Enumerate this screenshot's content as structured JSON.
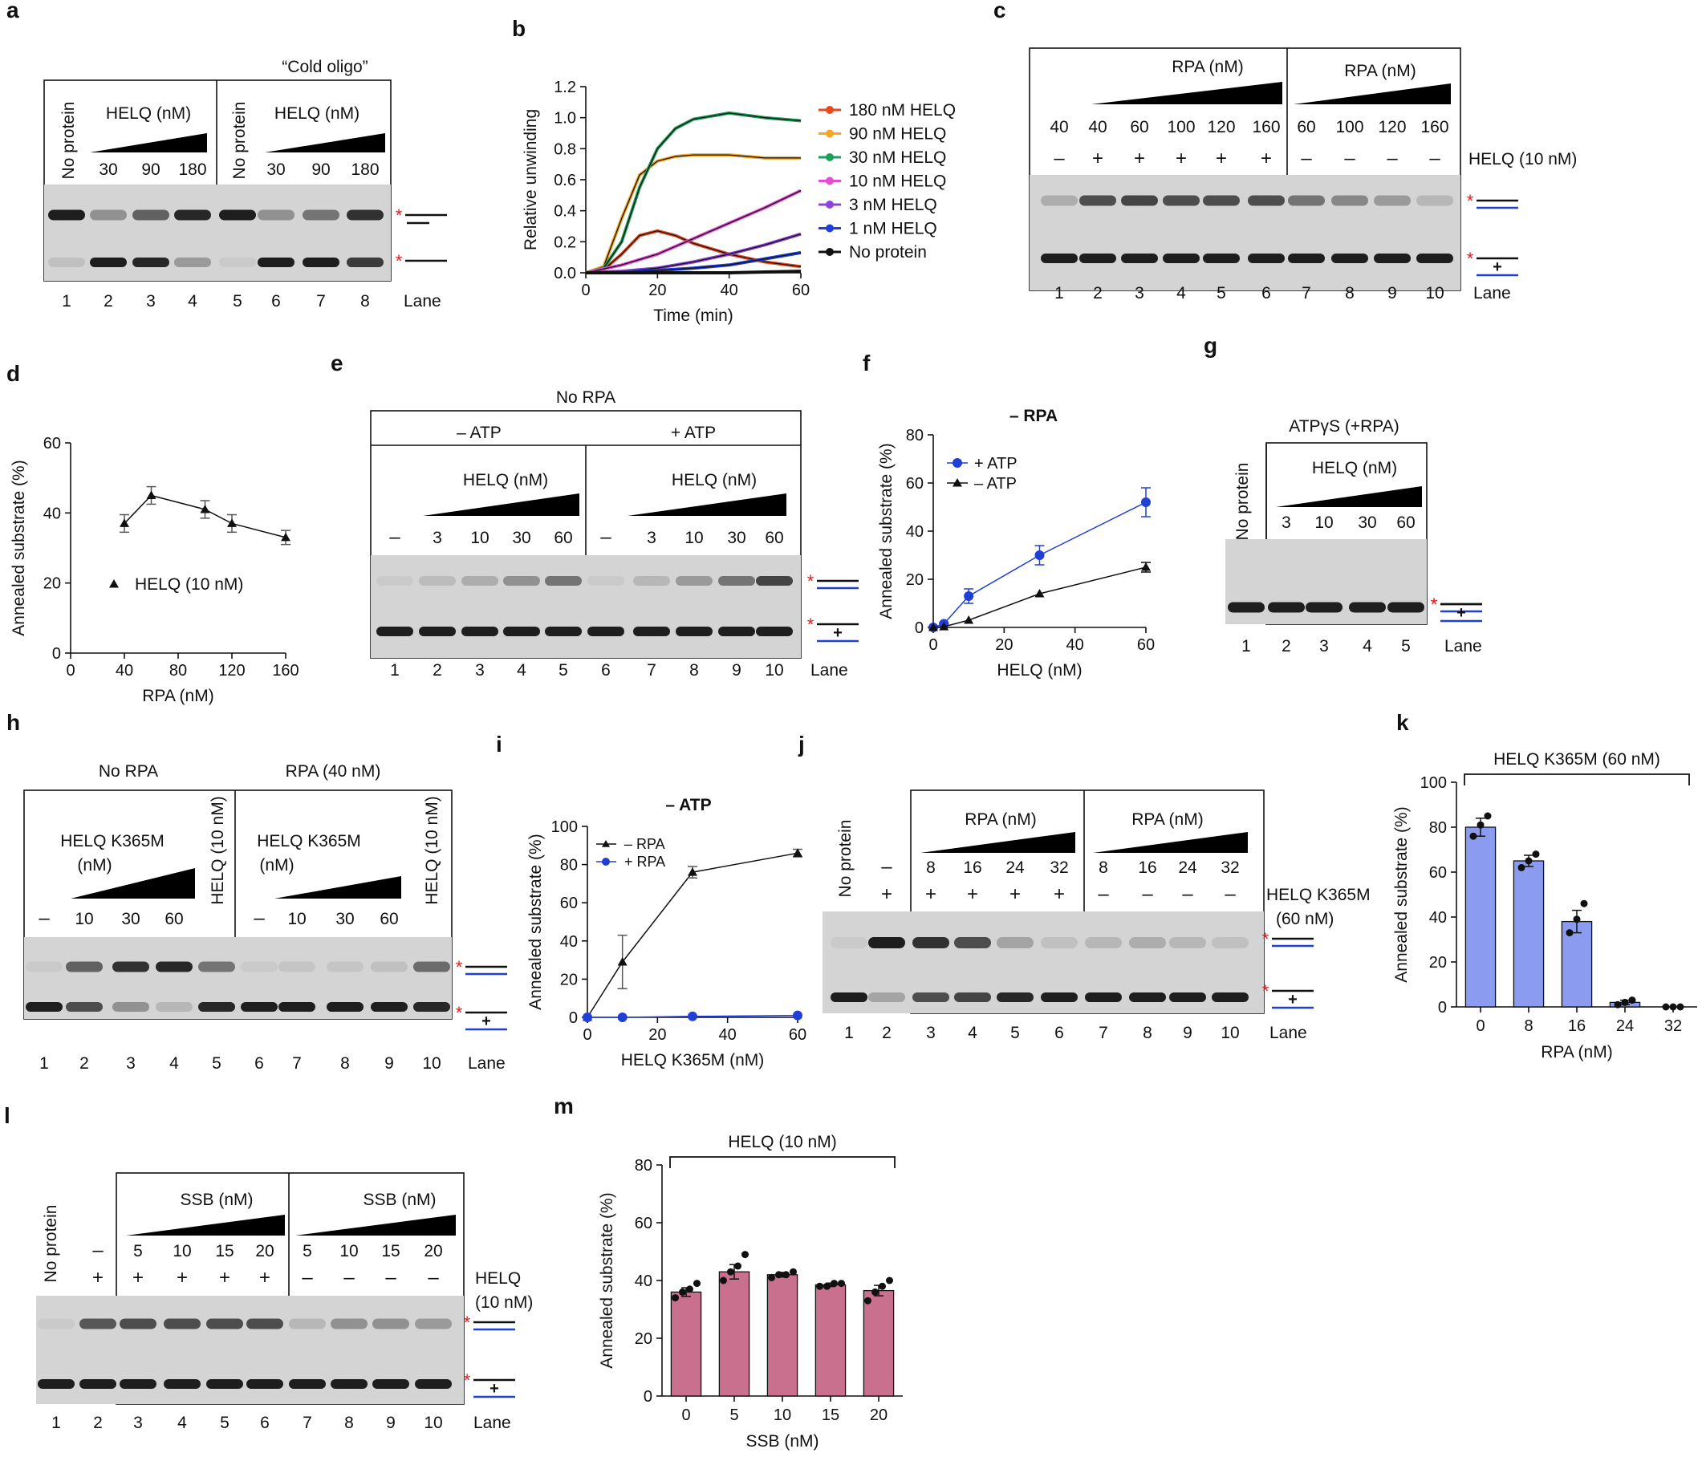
{
  "panels": {
    "a": {
      "letter": "a",
      "title": "“Cold oligo”",
      "no_protein": "No protein",
      "helq_label": "HELQ (nM)",
      "conc": [
        "30",
        "90",
        "180"
      ],
      "lanes": [
        "1",
        "2",
        "3",
        "4",
        "5",
        "6",
        "7",
        "8"
      ],
      "lane_word": "Lane"
    },
    "b": {
      "letter": "b"
    },
    "c": {
      "letter": "c",
      "rpa_label": "RPA (nM)",
      "conc_left": [
        "40",
        "40",
        "60",
        "100",
        "120",
        "160"
      ],
      "conc_right": [
        "60",
        "100",
        "120",
        "160"
      ],
      "signs_left": [
        "–",
        "+",
        "+",
        "+",
        "+",
        "+"
      ],
      "signs_right": [
        "–",
        "–",
        "–",
        "–"
      ],
      "helq_label": "HELQ (10 nM)",
      "lanes": [
        "1",
        "2",
        "3",
        "4",
        "5",
        "6",
        "7",
        "8",
        "9",
        "10"
      ],
      "lane_word": "Lane"
    },
    "d": {
      "letter": "d"
    },
    "e": {
      "letter": "e",
      "title": "No RPA",
      "minus_atp": "– ATP",
      "plus_atp": "+ ATP",
      "helq_label": "HELQ (nM)",
      "dash": "–",
      "conc": [
        "3",
        "10",
        "30",
        "60"
      ],
      "lanes": [
        "1",
        "2",
        "3",
        "4",
        "5",
        "6",
        "7",
        "8",
        "9",
        "10"
      ],
      "lane_word": "Lane"
    },
    "f": {
      "letter": "f"
    },
    "g": {
      "letter": "g",
      "title": "ATPγS (+RPA)",
      "no_protein": "No protein",
      "helq_label": "HELQ (nM)",
      "conc": [
        "3",
        "10",
        "30",
        "60"
      ],
      "lanes": [
        "1",
        "2",
        "3",
        "4",
        "5"
      ],
      "lane_word": "Lane"
    },
    "h": {
      "letter": "h",
      "no_rpa": "No RPA",
      "rpa40": "RPA (40 nM)",
      "k365m": "HELQ K365M",
      "nm": "(nM)",
      "helq10": "HELQ (10 nM)",
      "dash": "–",
      "conc": [
        "10",
        "30",
        "60"
      ],
      "lanes": [
        "1",
        "2",
        "3",
        "4",
        "5",
        "6",
        "7",
        "8",
        "9",
        "10"
      ],
      "lane_word": "Lane"
    },
    "i": {
      "letter": "i"
    },
    "j": {
      "letter": "j",
      "no_protein": "No protein",
      "rpa_label": "RPA (nM)",
      "conc": [
        "8",
        "16",
        "24",
        "32"
      ],
      "signs_top": [
        "–"
      ],
      "signs_left": [
        "+",
        "+",
        "+",
        "+",
        "+"
      ],
      "signs_right": [
        "–",
        "–",
        "–",
        "–"
      ],
      "helq_label_1": "HELQ K365M",
      "helq_label_2": "(60 nM)",
      "lanes": [
        "1",
        "2",
        "3",
        "4",
        "5",
        "6",
        "7",
        "8",
        "9",
        "10"
      ],
      "lane_word": "Lane"
    },
    "k": {
      "letter": "k"
    },
    "l": {
      "letter": "l",
      "no_protein": "No protein",
      "ssb_label": "SSB (nM)",
      "conc": [
        "5",
        "10",
        "15",
        "20"
      ],
      "signs_top": [
        "–"
      ],
      "signs_left": [
        "+",
        "+",
        "+",
        "+",
        "+"
      ],
      "signs_right": [
        "–",
        "–",
        "–",
        "–"
      ],
      "helq_label_1": "HELQ",
      "helq_label_2": "(10 nM)",
      "lanes": [
        "1",
        "2",
        "3",
        "4",
        "5",
        "6",
        "7",
        "8",
        "9",
        "10"
      ],
      "lane_word": "Lane"
    },
    "m": {
      "letter": "m"
    }
  },
  "colors": {
    "red": "#e31a1c",
    "blue": "#1f3fd6",
    "bar_k": "#8b9cf0",
    "bar_m": "#c9708f",
    "gel_bg": "#d4d4d4",
    "band": "#141414"
  },
  "chart_data": [
    {
      "panel": "b",
      "type": "line",
      "title": "",
      "xlabel": "Time (min)",
      "ylabel": "Relative unwinding",
      "xlim": [
        0,
        60
      ],
      "ylim": [
        0,
        1.2
      ],
      "xticks": [
        0,
        20,
        40,
        60
      ],
      "yticks": [
        0.0,
        0.2,
        0.4,
        0.6,
        0.8,
        1.0,
        1.2
      ],
      "ytick_labels": [
        "0.0",
        "0.2",
        "0.4",
        "0.6",
        "0.8",
        "1.0",
        "1.2"
      ],
      "series": [
        {
          "name": "180 nM HELQ",
          "color": "#e8491d",
          "x": [
            0,
            5,
            10,
            15,
            20,
            25,
            30,
            40,
            50,
            60
          ],
          "y": [
            0,
            0.02,
            0.12,
            0.24,
            0.27,
            0.24,
            0.19,
            0.12,
            0.07,
            0.04
          ]
        },
        {
          "name": "90 nM HELQ",
          "color": "#f5a623",
          "x": [
            0,
            5,
            10,
            15,
            20,
            25,
            30,
            40,
            50,
            60
          ],
          "y": [
            0,
            0.04,
            0.35,
            0.63,
            0.72,
            0.75,
            0.76,
            0.76,
            0.74,
            0.74
          ]
        },
        {
          "name": "30 nM HELQ",
          "color": "#1f9e5a",
          "x": [
            0,
            5,
            10,
            15,
            20,
            25,
            30,
            40,
            50,
            60
          ],
          "y": [
            0,
            0.03,
            0.2,
            0.55,
            0.8,
            0.93,
            0.99,
            1.03,
            1.0,
            0.98
          ]
        },
        {
          "name": "10 nM HELQ",
          "color": "#e64bd6",
          "x": [
            0,
            10,
            20,
            30,
            40,
            50,
            60
          ],
          "y": [
            0,
            0.05,
            0.12,
            0.22,
            0.32,
            0.42,
            0.53
          ]
        },
        {
          "name": "3 nM HELQ",
          "color": "#8e44d8",
          "x": [
            0,
            10,
            20,
            30,
            40,
            50,
            60
          ],
          "y": [
            0,
            0.01,
            0.03,
            0.07,
            0.12,
            0.18,
            0.25
          ]
        },
        {
          "name": "1 nM HELQ",
          "color": "#1f3fd6",
          "x": [
            0,
            10,
            20,
            30,
            40,
            50,
            60
          ],
          "y": [
            0,
            0.005,
            0.015,
            0.03,
            0.05,
            0.09,
            0.13
          ]
        },
        {
          "name": "No protein",
          "color": "#111111",
          "x": [
            0,
            10,
            20,
            30,
            40,
            50,
            60
          ],
          "y": [
            0,
            0.0,
            0.0,
            0.0,
            0.0,
            0.005,
            0.01
          ]
        }
      ]
    },
    {
      "panel": "d",
      "type": "line",
      "xlabel": "RPA (nM)",
      "ylabel": "Annealed substrate (%)",
      "xlim": [
        0,
        160
      ],
      "ylim": [
        0,
        60
      ],
      "xticks": [
        0,
        40,
        80,
        120,
        160
      ],
      "yticks": [
        0,
        20,
        40,
        60
      ],
      "legend": "HELQ (10 nM)",
      "series": [
        {
          "name": "HELQ (10 nM)",
          "color": "#111111",
          "marker": "triangle",
          "x": [
            40,
            60,
            100,
            120,
            160
          ],
          "y": [
            37,
            45,
            41,
            37,
            33
          ],
          "err": [
            2.5,
            2.5,
            2.5,
            2.5,
            2
          ]
        }
      ]
    },
    {
      "panel": "f",
      "type": "line",
      "title": "– RPA",
      "xlabel": "HELQ (nM)",
      "ylabel": "Annealed substrate (%)",
      "xlim": [
        0,
        60
      ],
      "ylim": [
        0,
        80
      ],
      "xticks": [
        0,
        20,
        40,
        60
      ],
      "yticks": [
        0,
        20,
        40,
        60,
        80
      ],
      "series": [
        {
          "name": "+ ATP",
          "color": "#1f3fd6",
          "marker": "circle",
          "x": [
            0,
            3,
            10,
            30,
            60
          ],
          "y": [
            0,
            1.5,
            13,
            30,
            52
          ],
          "err": [
            0,
            0.5,
            3,
            4,
            6
          ]
        },
        {
          "name": "– ATP",
          "color": "#111111",
          "marker": "triangle",
          "x": [
            0,
            3,
            10,
            30,
            60
          ],
          "y": [
            0,
            0.3,
            3,
            14,
            25
          ],
          "err": [
            0,
            0,
            0,
            0,
            2
          ]
        }
      ]
    },
    {
      "panel": "i",
      "type": "line",
      "title": "– ATP",
      "xlabel": "HELQ K365M (nM)",
      "ylabel": "Annealed substrate (%)",
      "xlim": [
        0,
        60
      ],
      "ylim": [
        0,
        100
      ],
      "xticks": [
        0,
        20,
        40,
        60
      ],
      "yticks": [
        0,
        20,
        40,
        60,
        80,
        100
      ],
      "series": [
        {
          "name": "– RPA",
          "color": "#111111",
          "marker": "triangle",
          "x": [
            0,
            10,
            30,
            60
          ],
          "y": [
            0,
            29,
            76,
            86
          ],
          "err": [
            0,
            14,
            3,
            2
          ]
        },
        {
          "name": "+ RPA",
          "color": "#1f3fd6",
          "marker": "circle",
          "x": [
            0,
            10,
            30,
            60
          ],
          "y": [
            0,
            0,
            0.5,
            1
          ],
          "err": [
            0,
            0,
            0,
            0
          ]
        }
      ]
    },
    {
      "panel": "k",
      "type": "bar",
      "title": "HELQ K365M (60 nM)",
      "xlabel": "RPA (nM)",
      "ylabel": "Annealed substrate (%)",
      "categories": [
        "0",
        "8",
        "16",
        "24",
        "32"
      ],
      "values": [
        80,
        65,
        38,
        2,
        0
      ],
      "err": [
        4,
        2.5,
        5,
        1,
        0
      ],
      "ylim": [
        0,
        100
      ],
      "yticks": [
        0,
        20,
        40,
        60,
        80,
        100
      ],
      "points": [
        [
          76,
          81,
          85
        ],
        [
          62,
          65,
          68
        ],
        [
          33,
          39,
          46
        ],
        [
          1,
          2,
          3
        ],
        [
          0,
          0,
          0
        ]
      ]
    },
    {
      "panel": "m",
      "type": "bar",
      "title": "HELQ (10 nM)",
      "xlabel": "SSB (nM)",
      "ylabel": "Annealed substrate (%)",
      "categories": [
        "0",
        "5",
        "10",
        "15",
        "20"
      ],
      "values": [
        36,
        43,
        42,
        38.5,
        36.5
      ],
      "err": [
        1.5,
        2.5,
        0.8,
        0.6,
        1.8
      ],
      "ylim": [
        0,
        80
      ],
      "yticks": [
        0,
        20,
        40,
        60,
        80
      ],
      "points": [
        [
          34,
          36,
          37,
          39
        ],
        [
          40,
          43,
          45,
          49
        ],
        [
          41,
          42,
          42,
          43
        ],
        [
          38,
          38,
          39,
          39
        ],
        [
          33,
          36,
          38,
          40
        ]
      ]
    }
  ]
}
